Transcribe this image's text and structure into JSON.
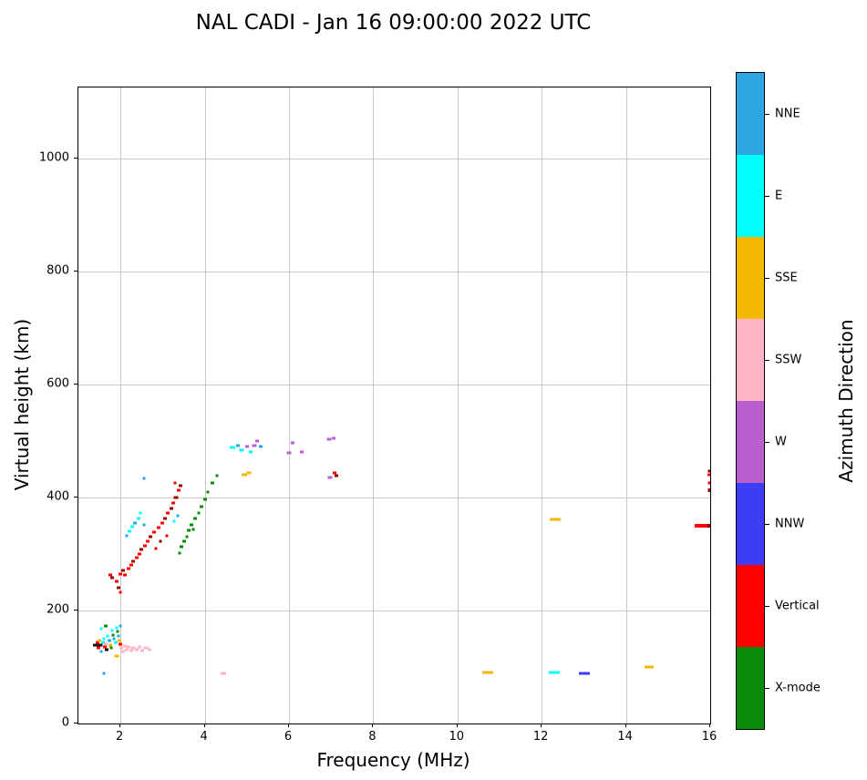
{
  "title": "NAL CADI - Jan 16 09:00:00 2022 UTC",
  "chart_data": {
    "type": "scatter",
    "title": "NAL CADI - Jan 16 09:00:00 2022 UTC",
    "xlabel": "Frequency (MHz)",
    "ylabel": "Virtual height (km)",
    "colorbar_title": "Azimuth Direction",
    "xlim": [
      1,
      16
    ],
    "ylim": [
      0,
      1125
    ],
    "x_ticks": [
      2,
      4,
      6,
      8,
      10,
      12,
      14,
      16
    ],
    "y_ticks": [
      0,
      200,
      400,
      600,
      800,
      1000
    ],
    "grid": true,
    "grid_color": "#c8c8c8",
    "axis_color": "#000000",
    "background": "#ffffff",
    "legend_position": "right-colorbar",
    "categories": [
      {
        "label": "NNE",
        "color": "#2da7e2"
      },
      {
        "label": "E",
        "color": "#00ffff"
      },
      {
        "label": "SSE",
        "color": "#f4b800"
      },
      {
        "label": "SSW",
        "color": "#ffb5c5"
      },
      {
        "label": "W",
        "color": "#ba60ce"
      },
      {
        "label": "NNW",
        "color": "#3d3df5"
      },
      {
        "label": "Vertical",
        "color": "#ff0000"
      },
      {
        "label": "X-mode",
        "color": "#0a8a0a"
      }
    ],
    "extra_colors": {
      "darkred": "#9b0000",
      "black": "#161616"
    },
    "point_format": [
      "frequency_mhz",
      "virtual_height_km",
      "direction",
      "marker_w_px",
      "marker_h_px"
    ],
    "points": [
      [
        1.42,
        138,
        "black",
        6,
        3
      ],
      [
        1.45,
        143,
        "Vertical",
        4,
        3
      ],
      [
        1.48,
        133,
        "Vertical",
        4,
        3
      ],
      [
        1.5,
        147,
        "SSE",
        4,
        3
      ],
      [
        1.52,
        139,
        "black",
        5,
        3
      ],
      [
        1.55,
        128,
        "NNE",
        3,
        3
      ],
      [
        1.55,
        168,
        "E",
        3,
        3
      ],
      [
        1.58,
        143,
        "E",
        4,
        3
      ],
      [
        1.6,
        150,
        "E",
        3,
        3
      ],
      [
        1.6,
        88,
        "NNE",
        3,
        3
      ],
      [
        1.63,
        136,
        "Vertical",
        4,
        3
      ],
      [
        1.65,
        141,
        "SSW",
        4,
        3
      ],
      [
        1.65,
        173,
        "X-mode",
        4,
        3
      ],
      [
        1.68,
        130,
        "black",
        4,
        3
      ],
      [
        1.7,
        155,
        "E",
        3,
        3
      ],
      [
        1.73,
        147,
        "NNE",
        4,
        3
      ],
      [
        1.75,
        138,
        "SSE",
        4,
        3
      ],
      [
        1.78,
        133,
        "X-mode",
        3,
        3
      ],
      [
        1.8,
        164,
        "E",
        3,
        3
      ],
      [
        1.83,
        157,
        "X-mode",
        3,
        3
      ],
      [
        1.85,
        150,
        "NNE",
        3,
        3
      ],
      [
        1.88,
        143,
        "E",
        4,
        3
      ],
      [
        1.9,
        170,
        "E",
        3,
        3
      ],
      [
        1.9,
        120,
        "SSE",
        5,
        3
      ],
      [
        1.93,
        163,
        "X-mode",
        3,
        3
      ],
      [
        1.95,
        155,
        "NNE",
        3,
        3
      ],
      [
        1.98,
        147,
        "SSE",
        4,
        3
      ],
      [
        2.0,
        172,
        "NNE",
        3,
        3
      ],
      [
        2.0,
        140,
        "Vertical",
        4,
        3
      ],
      [
        2.02,
        133,
        "SSW",
        4,
        3
      ],
      [
        2.05,
        128,
        "SSW",
        4,
        3
      ],
      [
        2.1,
        137,
        "SSW",
        4,
        3
      ],
      [
        2.15,
        131,
        "SSW",
        4,
        3
      ],
      [
        2.2,
        136,
        "SSW",
        4,
        3
      ],
      [
        2.25,
        129,
        "SSW",
        4,
        3
      ],
      [
        2.3,
        134,
        "SSW",
        5,
        3
      ],
      [
        2.38,
        130,
        "SSW",
        4,
        3
      ],
      [
        2.45,
        135,
        "SSW",
        4,
        3
      ],
      [
        2.52,
        129,
        "SSW",
        4,
        3
      ],
      [
        2.6,
        134,
        "SSW",
        5,
        3
      ],
      [
        2.68,
        131,
        "SSW",
        4,
        3
      ],
      [
        1.75,
        262,
        "Vertical",
        4,
        3
      ],
      [
        1.8,
        258,
        "darkred",
        4,
        3
      ],
      [
        1.9,
        252,
        "Vertical",
        4,
        3
      ],
      [
        1.95,
        240,
        "darkred",
        4,
        3
      ],
      [
        2.0,
        232,
        "Vertical",
        3,
        3
      ],
      [
        2.0,
        265,
        "Vertical",
        4,
        3
      ],
      [
        2.05,
        270,
        "darkred",
        4,
        3
      ],
      [
        2.1,
        262,
        "Vertical",
        4,
        3
      ],
      [
        2.18,
        274,
        "Vertical",
        4,
        3
      ],
      [
        2.25,
        280,
        "Vertical",
        4,
        3
      ],
      [
        2.3,
        287,
        "darkred",
        4,
        3
      ],
      [
        2.38,
        293,
        "Vertical",
        4,
        3
      ],
      [
        2.45,
        300,
        "Vertical",
        4,
        3
      ],
      [
        2.5,
        308,
        "darkred",
        4,
        3
      ],
      [
        2.58,
        315,
        "Vertical",
        4,
        3
      ],
      [
        2.65,
        322,
        "Vertical",
        4,
        3
      ],
      [
        2.72,
        330,
        "darkred",
        4,
        3
      ],
      [
        2.8,
        338,
        "Vertical",
        4,
        3
      ],
      [
        2.85,
        310,
        "Vertical",
        3,
        3
      ],
      [
        2.9,
        346,
        "Vertical",
        4,
        3
      ],
      [
        2.95,
        322,
        "darkred",
        3,
        3
      ],
      [
        3.0,
        354,
        "Vertical",
        4,
        3
      ],
      [
        3.05,
        362,
        "darkred",
        4,
        3
      ],
      [
        3.1,
        332,
        "Vertical",
        3,
        3
      ],
      [
        3.12,
        372,
        "Vertical",
        4,
        3
      ],
      [
        3.2,
        380,
        "darkred",
        4,
        3
      ],
      [
        3.25,
        390,
        "Vertical",
        4,
        3
      ],
      [
        3.32,
        400,
        "darkred",
        5,
        3
      ],
      [
        3.38,
        412,
        "Vertical",
        4,
        3
      ],
      [
        3.42,
        420,
        "darkred",
        4,
        3
      ],
      [
        3.3,
        425,
        "Vertical",
        3,
        3
      ],
      [
        2.15,
        332,
        "NNE",
        3,
        3
      ],
      [
        2.22,
        340,
        "E",
        4,
        3
      ],
      [
        2.28,
        348,
        "E",
        4,
        3
      ],
      [
        2.35,
        355,
        "NNE",
        4,
        3
      ],
      [
        2.42,
        362,
        "E",
        4,
        3
      ],
      [
        2.48,
        372,
        "E",
        3,
        3
      ],
      [
        2.55,
        352,
        "NNE",
        3,
        3
      ],
      [
        2.55,
        433,
        "NNE",
        3,
        3
      ],
      [
        3.28,
        358,
        "E",
        3,
        3
      ],
      [
        3.35,
        368,
        "NNE",
        3,
        3
      ],
      [
        3.4,
        302,
        "X-mode",
        3,
        3
      ],
      [
        3.45,
        312,
        "X-mode",
        4,
        3
      ],
      [
        3.52,
        322,
        "X-mode",
        4,
        3
      ],
      [
        3.58,
        330,
        "X-mode",
        3,
        3
      ],
      [
        3.62,
        342,
        "X-mode",
        4,
        3
      ],
      [
        3.68,
        352,
        "X-mode",
        4,
        3
      ],
      [
        3.72,
        344,
        "X-mode",
        3,
        3
      ],
      [
        3.78,
        362,
        "X-mode",
        4,
        3
      ],
      [
        3.85,
        372,
        "X-mode",
        3,
        3
      ],
      [
        3.92,
        384,
        "X-mode",
        4,
        3
      ],
      [
        4.0,
        396,
        "X-mode",
        4,
        3
      ],
      [
        4.08,
        410,
        "X-mode",
        3,
        3
      ],
      [
        4.18,
        426,
        "X-mode",
        4,
        3
      ],
      [
        4.28,
        438,
        "X-mode",
        3,
        3
      ],
      [
        4.65,
        488,
        "E",
        6,
        3
      ],
      [
        4.78,
        492,
        "NNE",
        4,
        3
      ],
      [
        4.88,
        484,
        "E",
        5,
        3
      ],
      [
        4.95,
        440,
        "SSE",
        6,
        3
      ],
      [
        5.05,
        444,
        "SSE",
        5,
        3
      ],
      [
        5.0,
        490,
        "W",
        4,
        3
      ],
      [
        5.1,
        481,
        "E",
        4,
        3
      ],
      [
        5.18,
        492,
        "W",
        5,
        3
      ],
      [
        5.25,
        499,
        "W",
        4,
        3
      ],
      [
        5.32,
        490,
        "NNE",
        4,
        3
      ],
      [
        6.0,
        478,
        "W",
        5,
        3
      ],
      [
        6.08,
        496,
        "W",
        4,
        3
      ],
      [
        6.3,
        480,
        "W",
        4,
        3
      ],
      [
        6.95,
        503,
        "W",
        5,
        3
      ],
      [
        7.05,
        505,
        "W",
        4,
        3
      ],
      [
        6.98,
        435,
        "W",
        5,
        3
      ],
      [
        7.08,
        443,
        "Vertical",
        4,
        3
      ],
      [
        7.12,
        438,
        "darkred",
        4,
        3
      ],
      [
        4.45,
        89,
        "SSW",
        6,
        3
      ],
      [
        10.72,
        90,
        "SSE",
        12,
        3
      ],
      [
        12.3,
        90,
        "E",
        12,
        3
      ],
      [
        13.02,
        89,
        "NNW",
        12,
        3
      ],
      [
        14.55,
        100,
        "SSE",
        10,
        3
      ],
      [
        12.32,
        361,
        "SSE",
        12,
        3
      ],
      [
        15.78,
        349,
        "Vertical",
        14,
        4
      ],
      [
        16.0,
        349,
        "darkred",
        6,
        4
      ],
      [
        16.0,
        412,
        "darkred",
        5,
        4
      ],
      [
        15.98,
        440,
        "Vertical",
        4,
        3
      ],
      [
        16.0,
        446,
        "darkred",
        5,
        3
      ],
      [
        15.97,
        425,
        "Vertical",
        3,
        3
      ]
    ]
  }
}
